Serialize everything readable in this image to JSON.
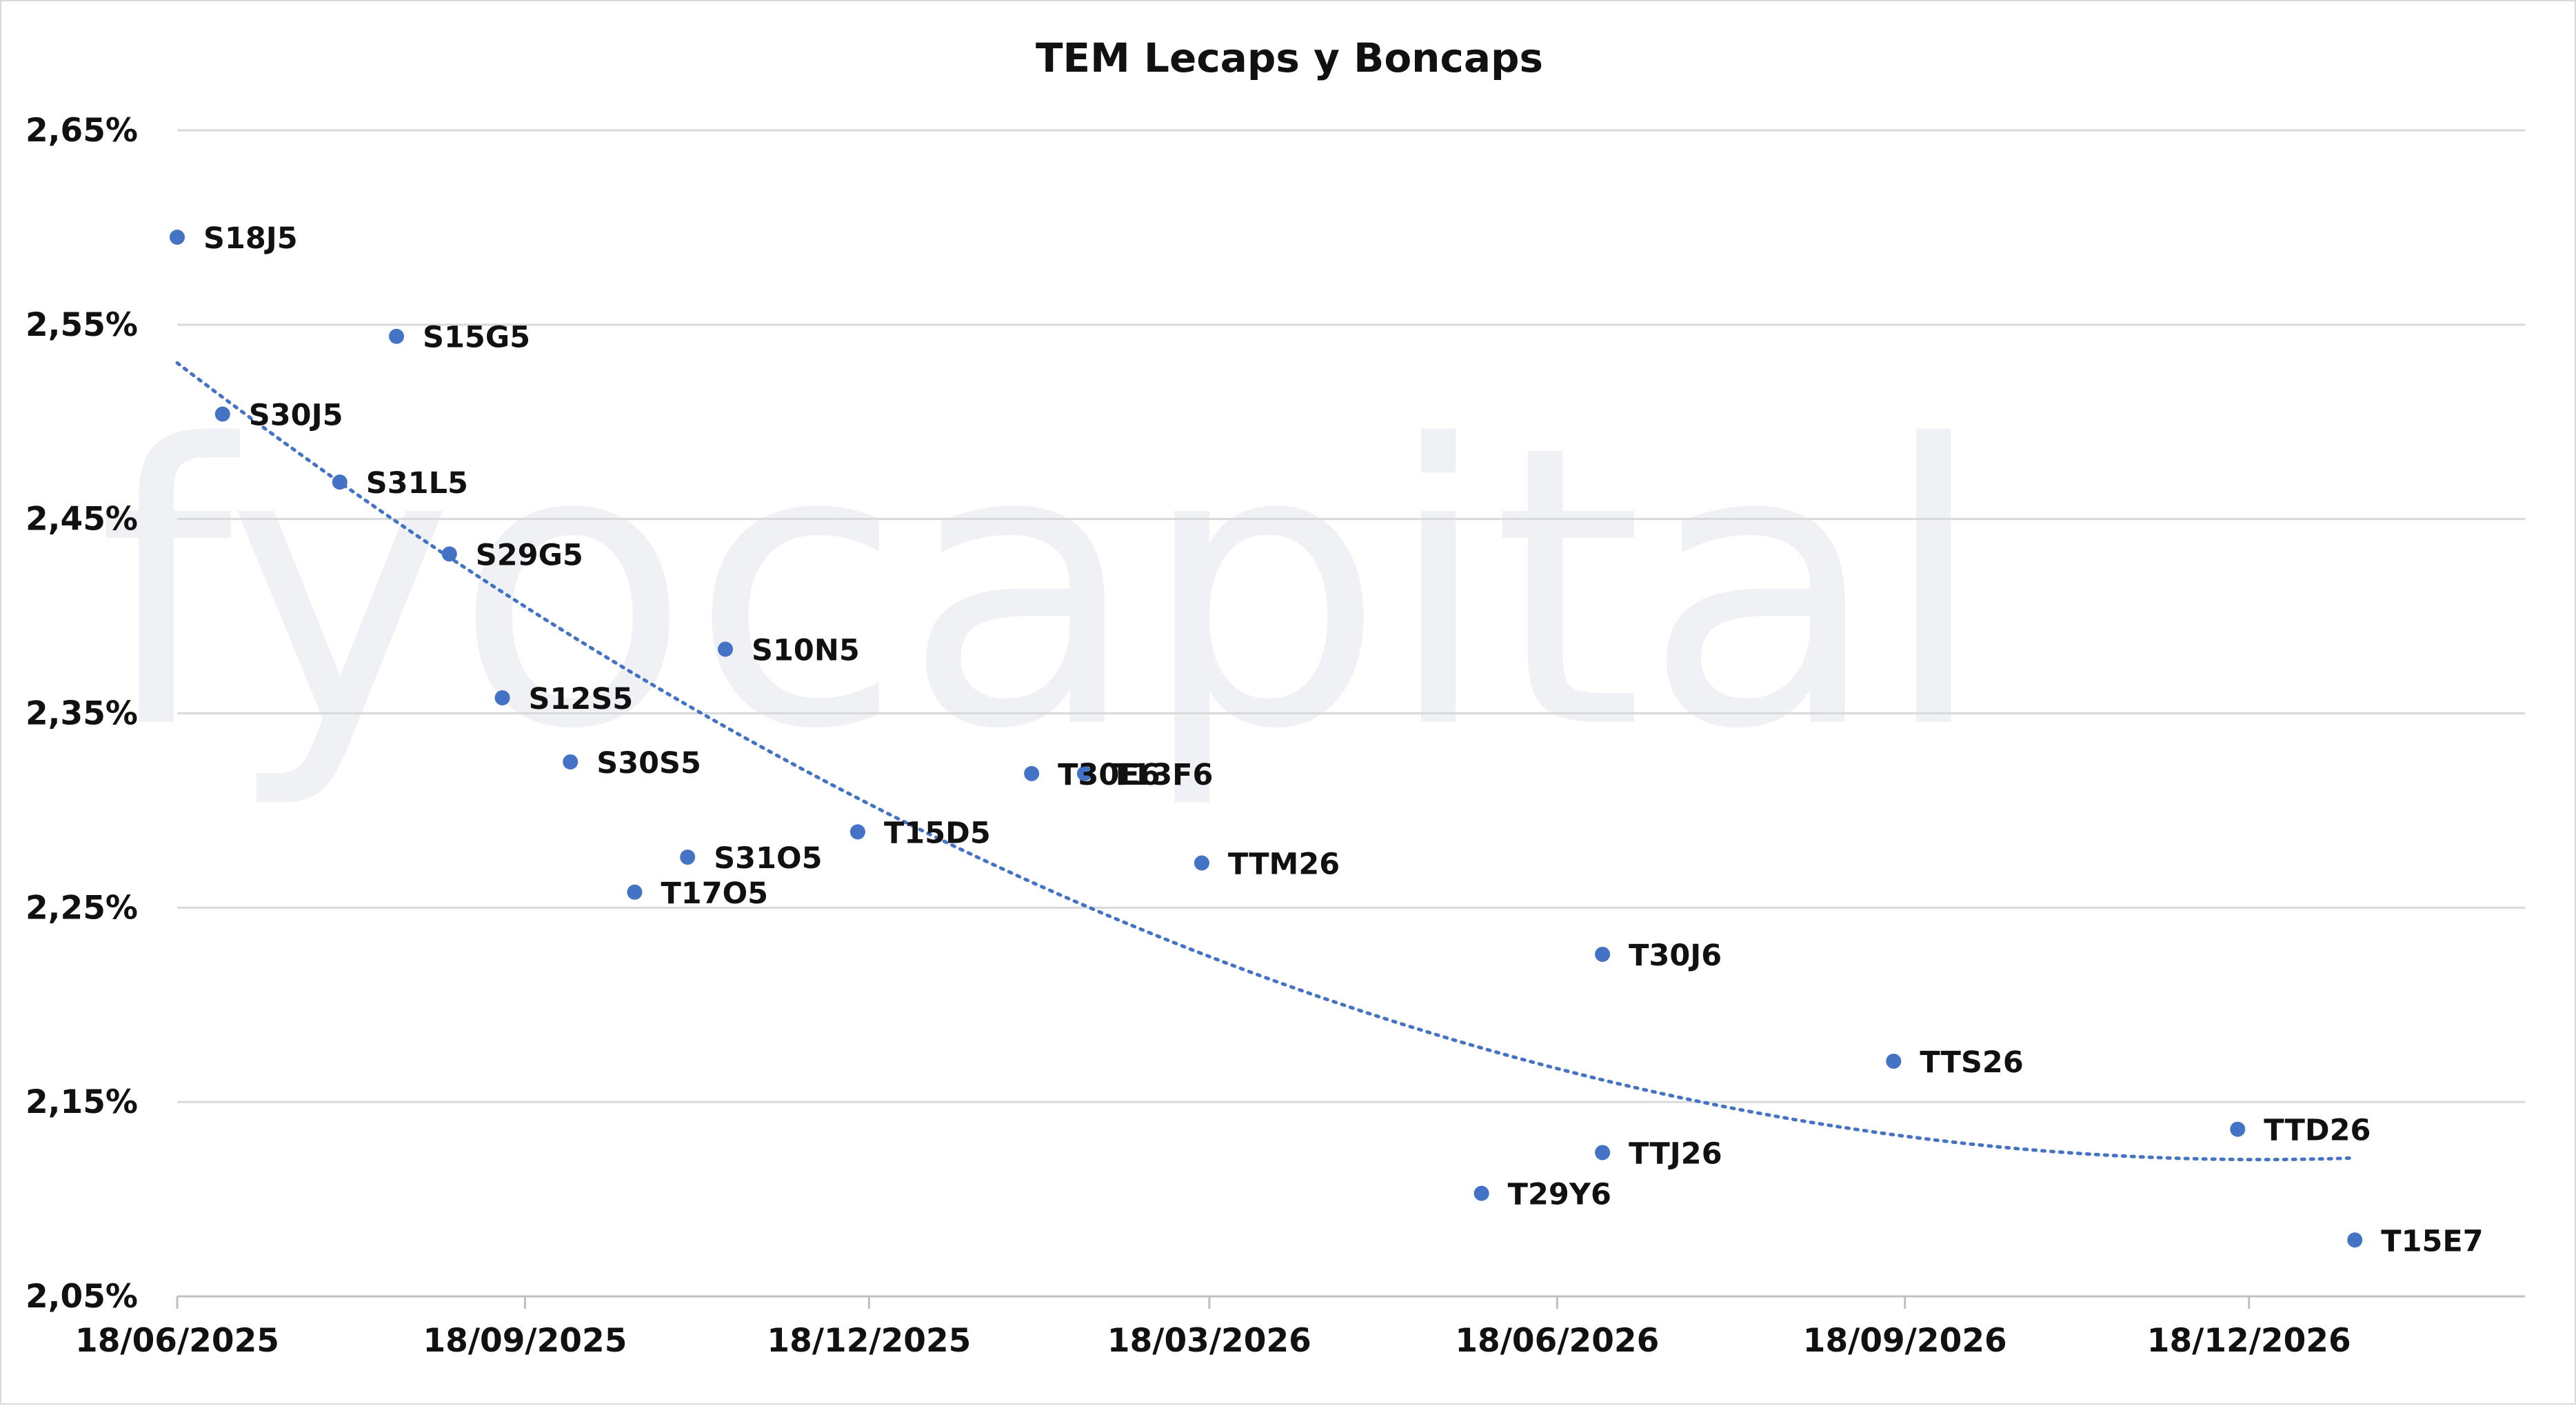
{
  "chart_data": {
    "type": "scatter",
    "title": "TEM Lecaps y Boncaps",
    "xlabel": "",
    "ylabel": "",
    "watermark": "fyocapital",
    "x_ticks": [
      "18/06/2025",
      "18/09/2025",
      "18/12/2025",
      "18/03/2026",
      "18/06/2026",
      "18/09/2026",
      "18/12/2026"
    ],
    "y_ticks": [
      "2,65%",
      "2,55%",
      "2,45%",
      "2,35%",
      "2,25%",
      "2,15%",
      "2,05%"
    ],
    "xlim": [
      "2025-06-18",
      "2027-03-01"
    ],
    "ylim": [
      2.05,
      2.65
    ],
    "grid": {
      "horizontal": true,
      "vertical": false
    },
    "legend": "none",
    "marker_color": "#4472c4",
    "trendline": {
      "type": "polynomial",
      "style": "dotted",
      "color": "#4472c4"
    },
    "points": [
      {
        "label": "S18J5",
        "x": "2025-06-18",
        "y": 2.595
      },
      {
        "label": "S30J5",
        "x": "2025-06-30",
        "y": 2.504
      },
      {
        "label": "S31L5",
        "x": "2025-07-31",
        "y": 2.469
      },
      {
        "label": "S15G5",
        "x": "2025-08-15",
        "y": 2.544
      },
      {
        "label": "S29G5",
        "x": "2025-08-29",
        "y": 2.432
      },
      {
        "label": "S12S5",
        "x": "2025-09-12",
        "y": 2.358
      },
      {
        "label": "S30S5",
        "x": "2025-09-30",
        "y": 2.325
      },
      {
        "label": "T17O5",
        "x": "2025-10-17",
        "y": 2.258
      },
      {
        "label": "S31O5",
        "x": "2025-10-31",
        "y": 2.276
      },
      {
        "label": "S10N5",
        "x": "2025-11-10",
        "y": 2.383
      },
      {
        "label": "T15D5",
        "x": "2025-12-15",
        "y": 2.289
      },
      {
        "label": "T30E6",
        "x": "2026-01-30",
        "y": 2.319
      },
      {
        "label": "T13F6",
        "x": "2026-02-13",
        "y": 2.319
      },
      {
        "label": "T29Y6",
        "x": "2026-05-29",
        "y": 2.103
      },
      {
        "label": "TTM26",
        "x": "2026-03-16",
        "y": 2.273
      },
      {
        "label": "T30J6",
        "x": "2026-06-30",
        "y": 2.226
      },
      {
        "label": "TTJ26",
        "x": "2026-06-30",
        "y": 2.124
      },
      {
        "label": "TTS26",
        "x": "2026-09-15",
        "y": 2.171
      },
      {
        "label": "TTD26",
        "x": "2026-12-15",
        "y": 2.136
      },
      {
        "label": "T15E7",
        "x": "2027-01-15",
        "y": 2.079
      }
    ]
  }
}
